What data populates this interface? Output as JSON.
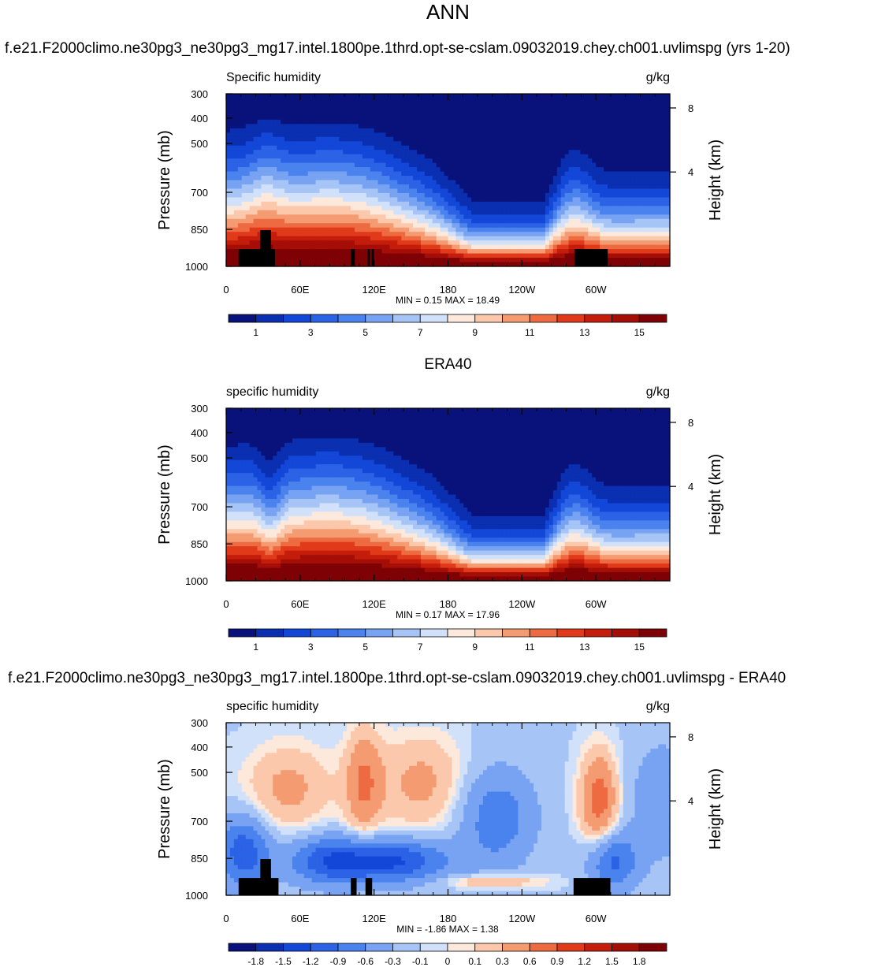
{
  "page": {
    "main_title": "ANN",
    "model_subtitle": "f.e21.F2000climo.ne30pg3_ne30pg3_mg17.intel.1800pe.1thrd.opt-se-cslam.09032019.chey.ch001.uvlimspg (yrs 1-20)",
    "obs_title": "ERA40",
    "diff_title": "f.e21.F2000climo.ne30pg3_ne30pg3_mg17.intel.1800pe.1thrd.opt-se-cslam.09032019.chey.ch001.uvlimspg - ERA40"
  },
  "chart_data": [
    {
      "type": "heatmap",
      "panel": "model",
      "left_label": "Specific humidity",
      "units": "g/kg",
      "ylabel": "Pressure (mb)",
      "ylabel_right": "Height (km)",
      "y_ticks": [
        "300",
        "400",
        "500",
        "700",
        "850",
        "1000"
      ],
      "y_right_ticks": [
        "8",
        "4"
      ],
      "x_ticks": [
        "0",
        "60E",
        "120E",
        "180",
        "120W",
        "60W"
      ],
      "min_max_label": "MIN =   0.15  MAX =  18.49",
      "min": 0.15,
      "max": 18.49,
      "colorbar_labels": [
        "1",
        "3",
        "5",
        "7",
        "9",
        "11",
        "13",
        "15"
      ],
      "colorbar_colors": [
        "#08127a",
        "#0a2fb0",
        "#1247d8",
        "#2b62e6",
        "#4a82ee",
        "#78a3f2",
        "#a7c4f6",
        "#d2e1fa",
        "#fde9dc",
        "#fbc8ac",
        "#f59b72",
        "#ee6a40",
        "#e03a1a",
        "#c41d0b",
        "#a40e07",
        "#7e0205"
      ]
    },
    {
      "type": "heatmap",
      "panel": "obs",
      "left_label": "specific humidity",
      "units": "g/kg",
      "ylabel": "Pressure (mb)",
      "ylabel_right": "Height (km)",
      "y_ticks": [
        "300",
        "400",
        "500",
        "700",
        "850",
        "1000"
      ],
      "y_right_ticks": [
        "8",
        "4"
      ],
      "x_ticks": [
        "0",
        "60E",
        "120E",
        "180",
        "120W",
        "60W"
      ],
      "min_max_label": "MIN =   0.17  MAX =  17.96",
      "min": 0.17,
      "max": 17.96,
      "colorbar_labels": [
        "1",
        "3",
        "5",
        "7",
        "9",
        "11",
        "13",
        "15"
      ],
      "colorbar_colors": [
        "#08127a",
        "#0a2fb0",
        "#1247d8",
        "#2b62e6",
        "#4a82ee",
        "#78a3f2",
        "#a7c4f6",
        "#d2e1fa",
        "#fde9dc",
        "#fbc8ac",
        "#f59b72",
        "#ee6a40",
        "#e03a1a",
        "#c41d0b",
        "#a40e07",
        "#7e0205"
      ]
    },
    {
      "type": "heatmap",
      "panel": "diff",
      "left_label": "specific humidity",
      "units": "g/kg",
      "ylabel": "Pressure (mb)",
      "ylabel_right": "Height (km)",
      "y_ticks": [
        "300",
        "400",
        "500",
        "700",
        "850",
        "1000"
      ],
      "y_right_ticks": [
        "8",
        "4"
      ],
      "x_ticks": [
        "0",
        "60E",
        "120E",
        "180",
        "120W",
        "60W"
      ],
      "min_max_label": "MIN =  -1.86  MAX =   1.38",
      "min": -1.86,
      "max": 1.38,
      "colorbar_labels": [
        "-1.8",
        "-1.5",
        "-1.2",
        "-0.9",
        "-0.6",
        "-0.3",
        "-0.1",
        "0",
        "0.1",
        "0.3",
        "0.6",
        "0.9",
        "1.2",
        "1.5",
        "1.8"
      ],
      "colorbar_colors": [
        "#08127a",
        "#0a2fb0",
        "#1247d8",
        "#2b62e6",
        "#4a82ee",
        "#78a3f2",
        "#a7c4f6",
        "#d2e1fa",
        "#fde9dc",
        "#fbc8ac",
        "#f59b72",
        "#ee6a40",
        "#e03a1a",
        "#c41d0b",
        "#a40e07",
        "#7e0205"
      ]
    }
  ]
}
